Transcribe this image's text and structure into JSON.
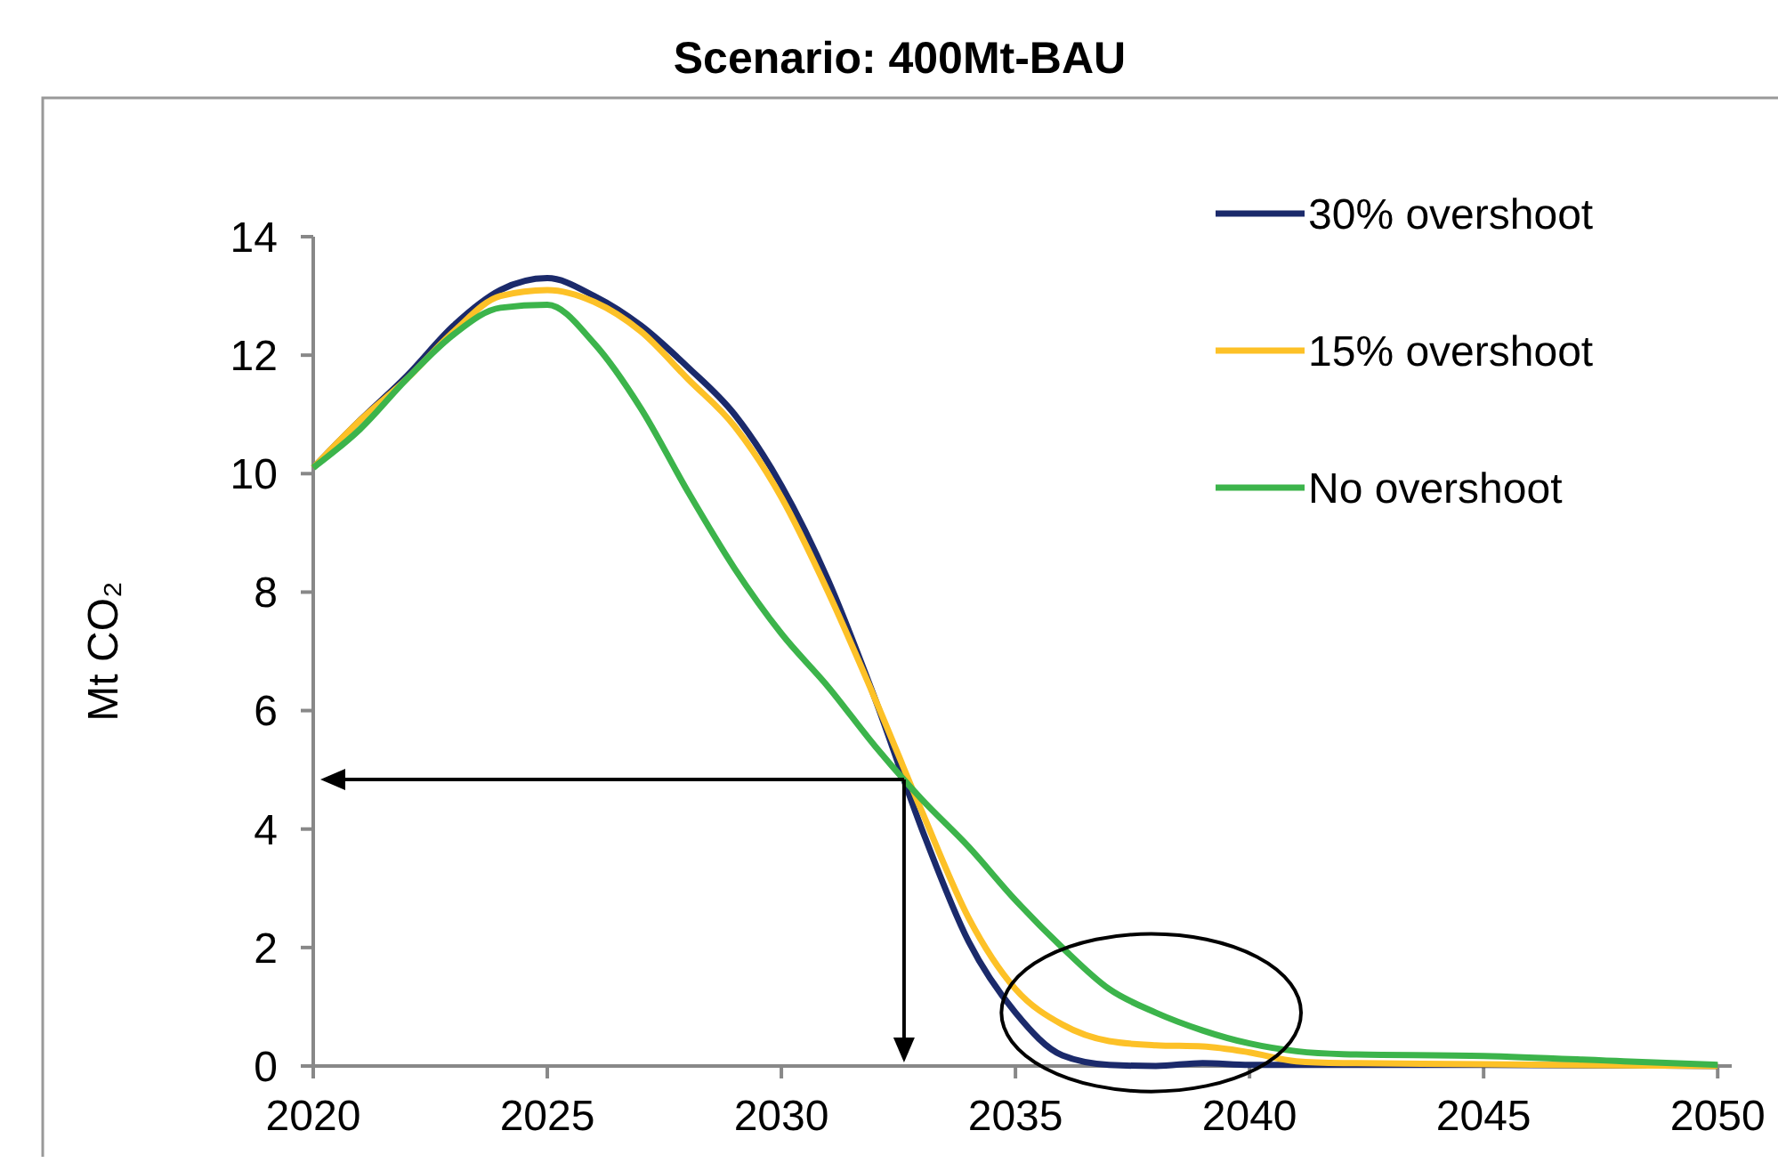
{
  "chart_data": {
    "type": "line",
    "title": "Scenario: 400Mt-BAU",
    "ylabel": "Mt CO₂",
    "xlim": [
      2020,
      2050.3
    ],
    "xticks": [
      2020,
      2025,
      2030,
      2035,
      2040,
      2045,
      2050
    ],
    "ylim": [
      0,
      14
    ],
    "yticks": [
      0,
      2,
      4,
      6,
      8,
      10,
      12,
      14
    ],
    "grid": false,
    "legend": "top right",
    "marker": "none",
    "line_style": "solid",
    "series": [
      {
        "name": "30% overshoot",
        "color": "#1b2a6b",
        "x": [
          2020,
          2021,
          2022,
          2023,
          2024,
          2025,
          2026,
          2027,
          2028,
          2029,
          2030,
          2031,
          2032,
          2033,
          2034,
          2035,
          2036,
          2037,
          2038,
          2039,
          2040,
          2041,
          2045,
          2050
        ],
        "values": [
          10.1,
          10.9,
          11.65,
          12.5,
          13.1,
          13.3,
          13.0,
          12.5,
          11.8,
          11.0,
          9.8,
          8.2,
          6.2,
          4.0,
          2.1,
          0.9,
          0.18,
          0.02,
          0.0,
          0.05,
          0.02,
          0.02,
          0.02,
          0.0
        ]
      },
      {
        "name": "15% overshoot",
        "color": "#fdc127",
        "x": [
          2020,
          2021,
          2022,
          2023,
          2024,
          2025,
          2026,
          2027,
          2028,
          2029,
          2030,
          2031,
          2032,
          2033,
          2034,
          2035,
          2036,
          2037,
          2038,
          2039,
          2040,
          2041,
          2042,
          2045,
          2050
        ],
        "values": [
          10.1,
          10.9,
          11.6,
          12.4,
          13.0,
          13.1,
          12.9,
          12.4,
          11.6,
          10.8,
          9.6,
          8.0,
          6.2,
          4.3,
          2.5,
          1.3,
          0.7,
          0.42,
          0.35,
          0.33,
          0.23,
          0.08,
          0.05,
          0.03,
          0.0
        ]
      },
      {
        "name": "No overshoot",
        "color": "#3cb44b",
        "x": [
          2020,
          2021,
          2022,
          2023,
          2024,
          2025,
          2026,
          2027,
          2028,
          2029,
          2030,
          2031,
          2032,
          2033,
          2034,
          2035,
          2036,
          2037,
          2038,
          2039,
          2040,
          2041,
          2042,
          2045,
          2048,
          2050
        ],
        "values": [
          10.1,
          10.75,
          11.6,
          12.35,
          12.8,
          12.85,
          12.2,
          11.1,
          9.7,
          8.4,
          7.3,
          6.4,
          5.4,
          4.5,
          3.7,
          2.8,
          2.0,
          1.3,
          0.9,
          0.6,
          0.38,
          0.25,
          0.2,
          0.17,
          0.08,
          0.02
        ]
      }
    ]
  }
}
